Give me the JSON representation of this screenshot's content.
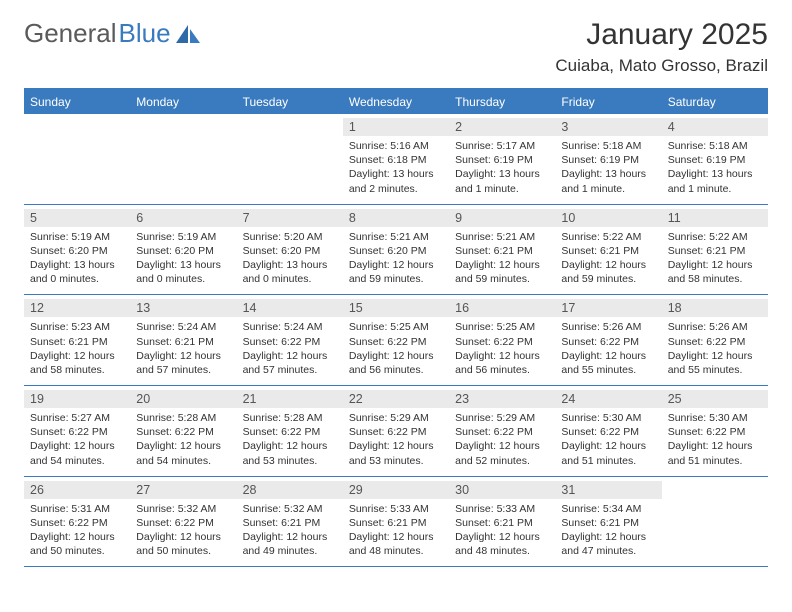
{
  "logo": {
    "text1": "General",
    "text2": "Blue"
  },
  "title": "January 2025",
  "location": "Cuiaba, Mato Grosso, Brazil",
  "day_names": [
    "Sunday",
    "Monday",
    "Tuesday",
    "Wednesday",
    "Thursday",
    "Friday",
    "Saturday"
  ],
  "colors": {
    "header_bg": "#3a7bbf",
    "header_fg": "#ffffff",
    "daynum_bg": "#eaeaea",
    "border": "#3a7bbf",
    "text": "#333333"
  },
  "weeks": [
    [
      {
        "day": "",
        "sunrise": "",
        "sunset": "",
        "daylight": ""
      },
      {
        "day": "",
        "sunrise": "",
        "sunset": "",
        "daylight": ""
      },
      {
        "day": "",
        "sunrise": "",
        "sunset": "",
        "daylight": ""
      },
      {
        "day": "1",
        "sunrise": "Sunrise: 5:16 AM",
        "sunset": "Sunset: 6:18 PM",
        "daylight": "Daylight: 13 hours and 2 minutes."
      },
      {
        "day": "2",
        "sunrise": "Sunrise: 5:17 AM",
        "sunset": "Sunset: 6:19 PM",
        "daylight": "Daylight: 13 hours and 1 minute."
      },
      {
        "day": "3",
        "sunrise": "Sunrise: 5:18 AM",
        "sunset": "Sunset: 6:19 PM",
        "daylight": "Daylight: 13 hours and 1 minute."
      },
      {
        "day": "4",
        "sunrise": "Sunrise: 5:18 AM",
        "sunset": "Sunset: 6:19 PM",
        "daylight": "Daylight: 13 hours and 1 minute."
      }
    ],
    [
      {
        "day": "5",
        "sunrise": "Sunrise: 5:19 AM",
        "sunset": "Sunset: 6:20 PM",
        "daylight": "Daylight: 13 hours and 0 minutes."
      },
      {
        "day": "6",
        "sunrise": "Sunrise: 5:19 AM",
        "sunset": "Sunset: 6:20 PM",
        "daylight": "Daylight: 13 hours and 0 minutes."
      },
      {
        "day": "7",
        "sunrise": "Sunrise: 5:20 AM",
        "sunset": "Sunset: 6:20 PM",
        "daylight": "Daylight: 13 hours and 0 minutes."
      },
      {
        "day": "8",
        "sunrise": "Sunrise: 5:21 AM",
        "sunset": "Sunset: 6:20 PM",
        "daylight": "Daylight: 12 hours and 59 minutes."
      },
      {
        "day": "9",
        "sunrise": "Sunrise: 5:21 AM",
        "sunset": "Sunset: 6:21 PM",
        "daylight": "Daylight: 12 hours and 59 minutes."
      },
      {
        "day": "10",
        "sunrise": "Sunrise: 5:22 AM",
        "sunset": "Sunset: 6:21 PM",
        "daylight": "Daylight: 12 hours and 59 minutes."
      },
      {
        "day": "11",
        "sunrise": "Sunrise: 5:22 AM",
        "sunset": "Sunset: 6:21 PM",
        "daylight": "Daylight: 12 hours and 58 minutes."
      }
    ],
    [
      {
        "day": "12",
        "sunrise": "Sunrise: 5:23 AM",
        "sunset": "Sunset: 6:21 PM",
        "daylight": "Daylight: 12 hours and 58 minutes."
      },
      {
        "day": "13",
        "sunrise": "Sunrise: 5:24 AM",
        "sunset": "Sunset: 6:21 PM",
        "daylight": "Daylight: 12 hours and 57 minutes."
      },
      {
        "day": "14",
        "sunrise": "Sunrise: 5:24 AM",
        "sunset": "Sunset: 6:22 PM",
        "daylight": "Daylight: 12 hours and 57 minutes."
      },
      {
        "day": "15",
        "sunrise": "Sunrise: 5:25 AM",
        "sunset": "Sunset: 6:22 PM",
        "daylight": "Daylight: 12 hours and 56 minutes."
      },
      {
        "day": "16",
        "sunrise": "Sunrise: 5:25 AM",
        "sunset": "Sunset: 6:22 PM",
        "daylight": "Daylight: 12 hours and 56 minutes."
      },
      {
        "day": "17",
        "sunrise": "Sunrise: 5:26 AM",
        "sunset": "Sunset: 6:22 PM",
        "daylight": "Daylight: 12 hours and 55 minutes."
      },
      {
        "day": "18",
        "sunrise": "Sunrise: 5:26 AM",
        "sunset": "Sunset: 6:22 PM",
        "daylight": "Daylight: 12 hours and 55 minutes."
      }
    ],
    [
      {
        "day": "19",
        "sunrise": "Sunrise: 5:27 AM",
        "sunset": "Sunset: 6:22 PM",
        "daylight": "Daylight: 12 hours and 54 minutes."
      },
      {
        "day": "20",
        "sunrise": "Sunrise: 5:28 AM",
        "sunset": "Sunset: 6:22 PM",
        "daylight": "Daylight: 12 hours and 54 minutes."
      },
      {
        "day": "21",
        "sunrise": "Sunrise: 5:28 AM",
        "sunset": "Sunset: 6:22 PM",
        "daylight": "Daylight: 12 hours and 53 minutes."
      },
      {
        "day": "22",
        "sunrise": "Sunrise: 5:29 AM",
        "sunset": "Sunset: 6:22 PM",
        "daylight": "Daylight: 12 hours and 53 minutes."
      },
      {
        "day": "23",
        "sunrise": "Sunrise: 5:29 AM",
        "sunset": "Sunset: 6:22 PM",
        "daylight": "Daylight: 12 hours and 52 minutes."
      },
      {
        "day": "24",
        "sunrise": "Sunrise: 5:30 AM",
        "sunset": "Sunset: 6:22 PM",
        "daylight": "Daylight: 12 hours and 51 minutes."
      },
      {
        "day": "25",
        "sunrise": "Sunrise: 5:30 AM",
        "sunset": "Sunset: 6:22 PM",
        "daylight": "Daylight: 12 hours and 51 minutes."
      }
    ],
    [
      {
        "day": "26",
        "sunrise": "Sunrise: 5:31 AM",
        "sunset": "Sunset: 6:22 PM",
        "daylight": "Daylight: 12 hours and 50 minutes."
      },
      {
        "day": "27",
        "sunrise": "Sunrise: 5:32 AM",
        "sunset": "Sunset: 6:22 PM",
        "daylight": "Daylight: 12 hours and 50 minutes."
      },
      {
        "day": "28",
        "sunrise": "Sunrise: 5:32 AM",
        "sunset": "Sunset: 6:21 PM",
        "daylight": "Daylight: 12 hours and 49 minutes."
      },
      {
        "day": "29",
        "sunrise": "Sunrise: 5:33 AM",
        "sunset": "Sunset: 6:21 PM",
        "daylight": "Daylight: 12 hours and 48 minutes."
      },
      {
        "day": "30",
        "sunrise": "Sunrise: 5:33 AM",
        "sunset": "Sunset: 6:21 PM",
        "daylight": "Daylight: 12 hours and 48 minutes."
      },
      {
        "day": "31",
        "sunrise": "Sunrise: 5:34 AM",
        "sunset": "Sunset: 6:21 PM",
        "daylight": "Daylight: 12 hours and 47 minutes."
      },
      {
        "day": "",
        "sunrise": "",
        "sunset": "",
        "daylight": ""
      }
    ]
  ]
}
